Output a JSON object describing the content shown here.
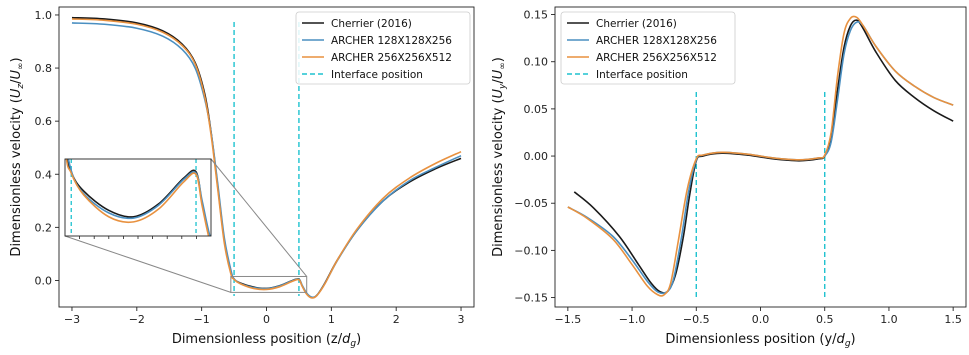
{
  "chart_data": [
    {
      "type": "line",
      "xlabel": "Dimensionless position (z/d_g)",
      "xlabel_main": "Dimensionless position (z/",
      "xlabel_sub": "g",
      "xlabel_var": "d",
      "xlabel_close": ")",
      "ylabel": "Dimensionless velocity (U_z/U_∞)",
      "ylabel_main": "Dimensionless velocity (",
      "ylabel_num": "U",
      "ylabel_num_sub": "z",
      "ylabel_den": "U",
      "ylabel_den_sub": "∞",
      "ylabel_close": ")",
      "xlim": [
        -3.2,
        3.2
      ],
      "ylim": [
        -0.1,
        1.03
      ],
      "xticks": [
        -3,
        -2,
        -1,
        0,
        1,
        2,
        3
      ],
      "yticks": [
        0.0,
        0.2,
        0.4,
        0.6,
        0.8,
        1.0
      ],
      "ytick_labels": [
        "0.0",
        "0.2",
        "0.4",
        "0.6",
        "0.8",
        "1.0"
      ],
      "legend_position": "top-right",
      "interface_lines": [
        -0.5,
        0.5
      ],
      "series": [
        {
          "name": "Cherrier (2016)",
          "color": "#1a1a1a",
          "x": [
            -3,
            -2.5,
            -2,
            -1.6,
            -1.3,
            -1.1,
            -0.95,
            -0.85,
            -0.75,
            -0.65,
            -0.55,
            -0.5,
            -0.4,
            -0.2,
            0,
            0.2,
            0.4,
            0.5,
            0.55,
            0.62,
            0.7,
            0.78,
            0.9,
            1.1,
            1.4,
            1.8,
            2.2,
            2.6,
            3.0
          ],
          "y": [
            0.99,
            0.985,
            0.97,
            0.94,
            0.89,
            0.82,
            0.7,
            0.55,
            0.35,
            0.15,
            0.03,
            0.005,
            -0.01,
            -0.025,
            -0.03,
            -0.02,
            0.0,
            0.005,
            -0.02,
            -0.05,
            -0.065,
            -0.055,
            -0.01,
            0.08,
            0.19,
            0.3,
            0.37,
            0.42,
            0.46
          ]
        },
        {
          "name": "ARCHER 128X128X256",
          "color": "#4a8fc1",
          "x": [
            -3,
            -2.5,
            -2,
            -1.6,
            -1.3,
            -1.1,
            -0.95,
            -0.85,
            -0.75,
            -0.65,
            -0.55,
            -0.5,
            -0.4,
            -0.2,
            0,
            0.2,
            0.4,
            0.5,
            0.55,
            0.62,
            0.7,
            0.78,
            0.9,
            1.1,
            1.4,
            1.8,
            2.2,
            2.6,
            3.0
          ],
          "y": [
            0.97,
            0.965,
            0.95,
            0.92,
            0.87,
            0.8,
            0.68,
            0.55,
            0.36,
            0.16,
            0.04,
            0.006,
            -0.012,
            -0.027,
            -0.031,
            -0.021,
            -0.001,
            0.004,
            -0.018,
            -0.048,
            -0.063,
            -0.055,
            -0.012,
            0.078,
            0.19,
            0.3,
            0.375,
            0.425,
            0.47
          ]
        },
        {
          "name": "ARCHER 256X256X512",
          "color": "#e8913f",
          "x": [
            -3,
            -2.5,
            -2,
            -1.6,
            -1.3,
            -1.1,
            -0.95,
            -0.85,
            -0.75,
            -0.65,
            -0.55,
            -0.5,
            -0.4,
            -0.2,
            0,
            0.2,
            0.4,
            0.5,
            0.55,
            0.62,
            0.7,
            0.78,
            0.9,
            1.1,
            1.4,
            1.8,
            2.2,
            2.6,
            3.0
          ],
          "y": [
            0.985,
            0.98,
            0.965,
            0.935,
            0.885,
            0.815,
            0.69,
            0.54,
            0.34,
            0.14,
            0.025,
            0.004,
            -0.013,
            -0.03,
            -0.034,
            -0.024,
            -0.003,
            0.003,
            -0.022,
            -0.052,
            -0.066,
            -0.056,
            -0.013,
            0.08,
            0.195,
            0.31,
            0.385,
            0.44,
            0.485
          ]
        }
      ],
      "inset": {
        "xlim": [
          -0.55,
          0.62
        ],
        "ylim": [
          -0.045,
          0.015
        ]
      }
    },
    {
      "type": "line",
      "xlabel": "Dimensionless position (y/d_g)",
      "xlabel_main": "Dimensionless position (y/",
      "xlabel_sub": "g",
      "xlabel_var": "d",
      "xlabel_close": ")",
      "ylabel": "Dimensionless velocity (U_y/U_∞)",
      "ylabel_main": "Dimensionless velocity (",
      "ylabel_num": "U",
      "ylabel_num_sub": "y",
      "ylabel_den": "U",
      "ylabel_den_sub": "∞",
      "ylabel_close": ")",
      "xlim": [
        -1.6,
        1.6
      ],
      "ylim": [
        -0.16,
        0.158
      ],
      "xticks": [
        -1.5,
        -1.0,
        -0.5,
        0.0,
        0.5,
        1.0,
        1.5
      ],
      "xtick_labels": [
        "−1.5",
        "−1.0",
        "−0.5",
        "0.0",
        "0.5",
        "1.0",
        "1.5"
      ],
      "yticks": [
        -0.15,
        -0.1,
        -0.05,
        0.0,
        0.05,
        0.1,
        0.15
      ],
      "ytick_labels": [
        "−0.15",
        "−0.10",
        "−0.05",
        "0.00",
        "0.05",
        "0.10",
        "0.15"
      ],
      "legend_position": "top-left",
      "interface_lines": [
        -0.5,
        0.5
      ],
      "series": [
        {
          "name": "Cherrier (2016)",
          "color": "#1a1a1a",
          "x": [
            -1.45,
            -1.3,
            -1.1,
            -0.95,
            -0.85,
            -0.78,
            -0.72,
            -0.66,
            -0.6,
            -0.55,
            -0.5,
            -0.45,
            -0.3,
            -0.1,
            0.1,
            0.3,
            0.45,
            0.5,
            0.55,
            0.6,
            0.65,
            0.7,
            0.75,
            0.8,
            0.9,
            1.05,
            1.2,
            1.35,
            1.5
          ],
          "y": [
            -0.038,
            -0.055,
            -0.085,
            -0.115,
            -0.135,
            -0.144,
            -0.143,
            -0.125,
            -0.085,
            -0.04,
            -0.005,
            0.0,
            0.003,
            0.001,
            -0.003,
            -0.005,
            -0.003,
            0.0,
            0.02,
            0.07,
            0.115,
            0.138,
            0.144,
            0.135,
            0.11,
            0.08,
            0.062,
            0.048,
            0.037
          ]
        },
        {
          "name": "ARCHER 128X128X256",
          "color": "#4a8fc1",
          "x": [
            -1.5,
            -1.35,
            -1.15,
            -1.0,
            -0.88,
            -0.8,
            -0.73,
            -0.68,
            -0.62,
            -0.56,
            -0.5,
            -0.45,
            -0.3,
            -0.1,
            0.1,
            0.3,
            0.45,
            0.5,
            0.55,
            0.6,
            0.65,
            0.7,
            0.75,
            0.8,
            0.9,
            1.05,
            1.2,
            1.35,
            1.5
          ],
          "y": [
            -0.054,
            -0.065,
            -0.085,
            -0.11,
            -0.133,
            -0.144,
            -0.144,
            -0.132,
            -0.09,
            -0.038,
            -0.004,
            0.001,
            0.004,
            0.002,
            -0.002,
            -0.004,
            -0.002,
            0.0,
            0.015,
            0.06,
            0.108,
            0.133,
            0.142,
            0.138,
            0.116,
            0.09,
            0.074,
            0.062,
            0.054
          ]
        },
        {
          "name": "ARCHER 256X256X512",
          "color": "#e8913f",
          "x": [
            -1.5,
            -1.35,
            -1.15,
            -1.0,
            -0.88,
            -0.8,
            -0.75,
            -0.7,
            -0.64,
            -0.57,
            -0.5,
            -0.45,
            -0.3,
            -0.1,
            0.1,
            0.3,
            0.45,
            0.5,
            0.55,
            0.6,
            0.65,
            0.7,
            0.75,
            0.8,
            0.9,
            1.05,
            1.2,
            1.35,
            1.5
          ],
          "y": [
            -0.054,
            -0.066,
            -0.088,
            -0.115,
            -0.138,
            -0.147,
            -0.147,
            -0.135,
            -0.09,
            -0.035,
            -0.003,
            0.001,
            0.004,
            0.002,
            -0.002,
            -0.004,
            -0.002,
            0.001,
            0.025,
            0.085,
            0.13,
            0.146,
            0.147,
            0.138,
            0.116,
            0.09,
            0.074,
            0.062,
            0.054
          ]
        }
      ]
    }
  ],
  "legend_interface_label": "Interface position",
  "colors": {
    "interface": "#1ec2cf",
    "spine": "#222222",
    "inset_box": "#888888"
  }
}
